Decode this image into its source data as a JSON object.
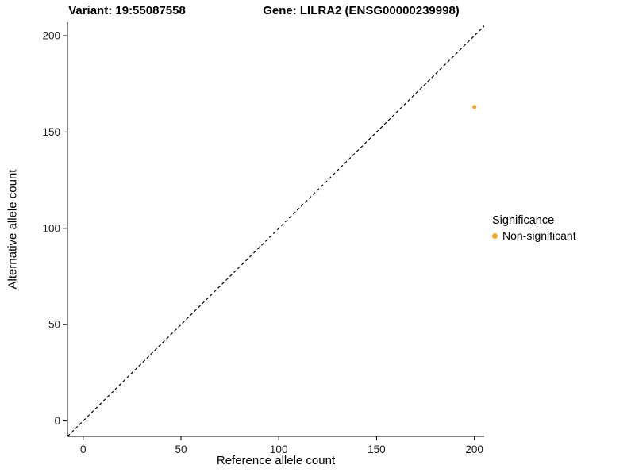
{
  "chart_data": {
    "type": "scatter",
    "title_left": "Variant: 19:55087558",
    "title_right": "Gene: LILRA2 (ENSG00000239998)",
    "xlabel": "Reference allele count",
    "ylabel": "Alternative allele count",
    "xlim": [
      -8,
      205
    ],
    "ylim": [
      -8,
      207
    ],
    "xticks": [
      0,
      50,
      100,
      150,
      200
    ],
    "yticks": [
      0,
      50,
      100,
      150,
      200
    ],
    "grid": false,
    "identity_line": {
      "style": "dashed",
      "color": "#000000",
      "from": -8,
      "to": 206
    },
    "series": [
      {
        "name": "Non-significant",
        "color": "#F5A623",
        "points": [
          {
            "x": 200,
            "y": 163
          }
        ]
      }
    ],
    "legend": {
      "title": "Significance",
      "position": "right",
      "entries": [
        {
          "label": "Non-significant",
          "color": "#F5A623"
        }
      ]
    }
  }
}
